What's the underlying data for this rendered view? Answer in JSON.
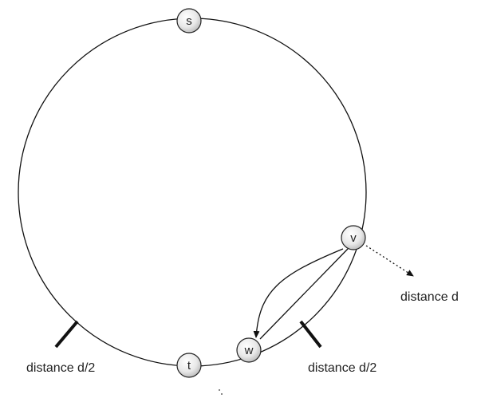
{
  "nodes": [
    {
      "label": "s"
    },
    {
      "label": "v"
    },
    {
      "label": "w"
    },
    {
      "label": "t"
    }
  ],
  "annotations": [
    {
      "label": "distance d"
    },
    {
      "label": "distance d/2"
    },
    {
      "label": "distance d/2"
    }
  ]
}
